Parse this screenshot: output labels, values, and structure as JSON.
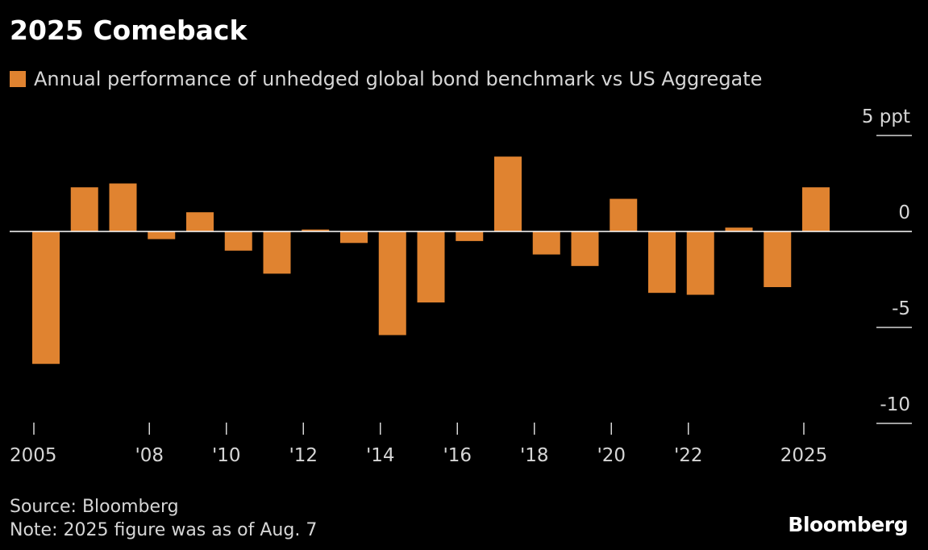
{
  "title": "2025 Comeback",
  "source": "Source: Bloomberg",
  "note": "Note: 2025 figure was as of Aug. 7",
  "logo": "Bloomberg",
  "colors": {
    "bar": "#E08330",
    "background": "#000000",
    "zero_line": "#ffffff"
  },
  "chart_data": {
    "type": "bar",
    "legend": "Annual performance of unhedged global bond benchmark vs US Aggregate",
    "categories": [
      "2005",
      "2006",
      "2007",
      "2008",
      "2009",
      "2010",
      "2011",
      "2012",
      "2013",
      "2014",
      "2015",
      "2016",
      "2017",
      "2018",
      "2019",
      "2020",
      "2021",
      "2022",
      "2023",
      "2024",
      "2025"
    ],
    "values": [
      -6.9,
      2.3,
      2.5,
      -0.4,
      1.0,
      -1.0,
      -2.2,
      0.1,
      -0.6,
      -5.4,
      -3.7,
      -0.5,
      3.9,
      -1.2,
      -1.8,
      1.7,
      -3.2,
      -3.3,
      0.2,
      -2.9,
      2.3
    ],
    "y_ticks": [
      {
        "value": 5,
        "label": "5 ppt"
      },
      {
        "value": 0,
        "label": "0"
      },
      {
        "value": -5,
        "label": "-5"
      },
      {
        "value": -10,
        "label": "-10"
      }
    ],
    "x_ticks": [
      {
        "category": "2005",
        "label": "2005"
      },
      {
        "category": "2008",
        "label": "'08"
      },
      {
        "category": "2010",
        "label": "'10"
      },
      {
        "category": "2012",
        "label": "'12"
      },
      {
        "category": "2014",
        "label": "'14"
      },
      {
        "category": "2016",
        "label": "'16"
      },
      {
        "category": "2018",
        "label": "'18"
      },
      {
        "category": "2020",
        "label": "'20"
      },
      {
        "category": "2022",
        "label": "'22"
      },
      {
        "category": "2025",
        "label": "2025"
      }
    ],
    "ylim": [
      -10,
      5
    ],
    "y_axis_position": "right",
    "grid": false
  }
}
